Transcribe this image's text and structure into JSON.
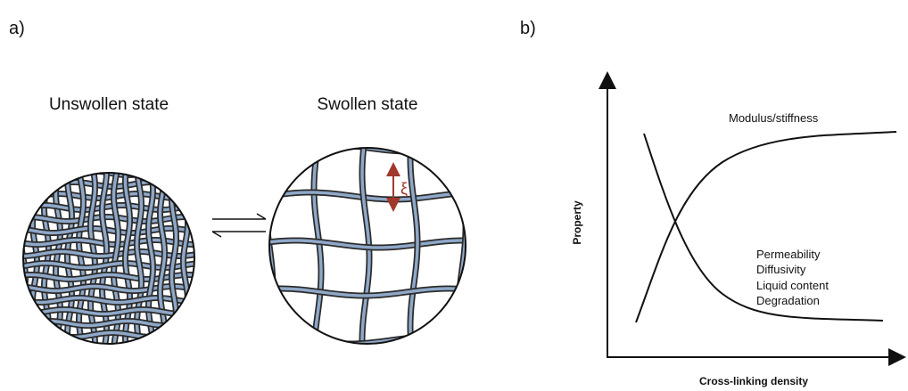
{
  "panel_a": {
    "label": "a)",
    "unswollen": {
      "title": "Unswollen state"
    },
    "swollen": {
      "title": "Swollen state",
      "mesh_size_symbol": "ξ"
    }
  },
  "panel_b": {
    "label": "b)",
    "y_axis": "Property",
    "x_axis": "Cross-linking density",
    "rising_curve": "Modulus/stiffness",
    "falling_curve": [
      "Permeability",
      "Diffusivity",
      "Liquid content",
      "Degradation"
    ]
  }
}
